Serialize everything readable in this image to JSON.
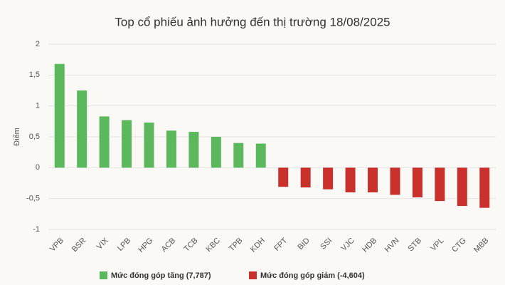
{
  "chart_data": {
    "type": "bar",
    "title": "Top cổ phiếu ảnh hưởng đến thị trường 18/08/2025",
    "y_label": "Điểm",
    "categories": [
      "VPB",
      "BSR",
      "VIX",
      "LPB",
      "HPG",
      "ACB",
      "TCB",
      "KBC",
      "TPB",
      "KDH",
      "FPT",
      "BID",
      "SSI",
      "VJC",
      "HDB",
      "HVN",
      "STB",
      "VPL",
      "CTG",
      "MBB"
    ],
    "series": [
      {
        "name": "Mức đóng góp tăng (7,787)",
        "color": "#5cb85c",
        "values": [
          1.68,
          1.25,
          0.83,
          0.77,
          0.73,
          0.6,
          0.58,
          0.5,
          0.4,
          0.39,
          null,
          null,
          null,
          null,
          null,
          null,
          null,
          null,
          null,
          null
        ]
      },
      {
        "name": "Mức đóng góp giảm (-4,604)",
        "color": "#c9302c",
        "values": [
          null,
          null,
          null,
          null,
          null,
          null,
          null,
          null,
          null,
          null,
          -0.31,
          -0.32,
          -0.35,
          -0.4,
          -0.4,
          -0.44,
          -0.48,
          -0.54,
          -0.62,
          -0.65
        ]
      }
    ],
    "ylim": [
      -1,
      2
    ],
    "yticks": [
      -1,
      {
        "value": -0.5,
        "label": "-0,5"
      },
      0,
      {
        "value": 0.5,
        "label": "0,5"
      },
      1,
      {
        "value": 1.5,
        "label": "1,5"
      },
      2
    ],
    "grid": true
  }
}
